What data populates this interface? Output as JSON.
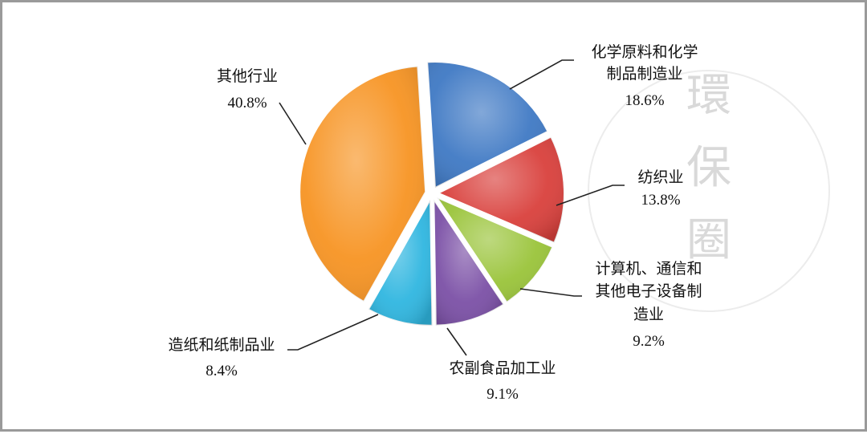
{
  "chart_data": {
    "type": "pie",
    "slices": [
      {
        "label_lines": [
          "化学原料和化学",
          "制品制造业"
        ],
        "pct": "18.6%",
        "value": 18.6,
        "color": "#3f79c4"
      },
      {
        "label_lines": [
          "纺织业"
        ],
        "pct": "13.8%",
        "value": 13.8,
        "color": "#d9403c"
      },
      {
        "label_lines": [
          "计算机、通信和",
          "其他电子设备制",
          "造业"
        ],
        "pct": "9.2%",
        "value": 9.2,
        "color": "#9ac43a"
      },
      {
        "label_lines": [
          "农副食品加工业"
        ],
        "pct": "9.1%",
        "value": 9.1,
        "color": "#7b50a6"
      },
      {
        "label_lines": [
          "造纸和纸制品业"
        ],
        "pct": "8.4%",
        "value": 8.4,
        "color": "#2fb6e0"
      },
      {
        "label_lines": [
          "其他行业"
        ],
        "pct": "40.8%",
        "value": 40.8,
        "color": "#f79423"
      }
    ]
  },
  "watermark": {
    "chars": [
      "環",
      "保",
      "圈"
    ]
  }
}
